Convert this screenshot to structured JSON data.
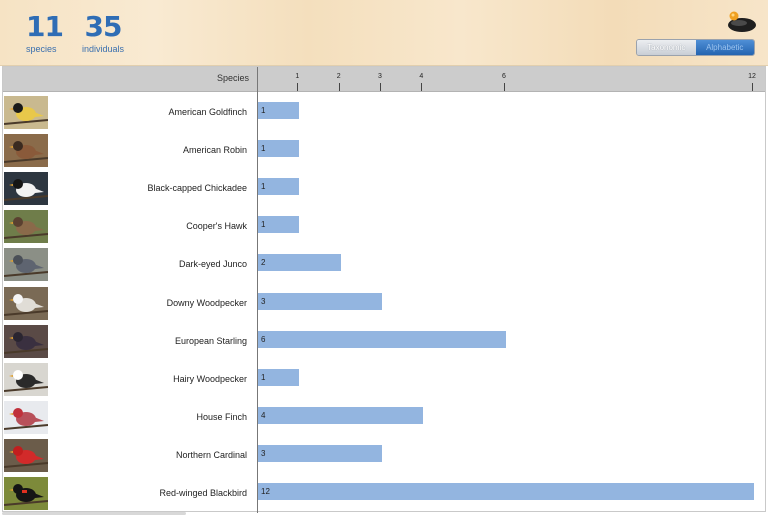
{
  "summary": {
    "species_count": "11",
    "species_label": "species",
    "individuals_count": "35",
    "individuals_label": "individuals"
  },
  "sort_toggle": {
    "options": [
      {
        "label": "Taxonomic",
        "active": false
      },
      {
        "label": "Alphabetic",
        "active": true
      }
    ]
  },
  "table": {
    "species_header": "Species",
    "axis_ticks": [
      "1",
      "2",
      "3",
      "4",
      "6",
      "12"
    ]
  },
  "colors": {
    "bar": "#93b5e0",
    "accent": "#2f6db5",
    "header_bg": "#f6e3c4"
  },
  "chart_data": {
    "type": "bar",
    "orientation": "horizontal",
    "categories": [
      "American Goldfinch",
      "American Robin",
      "Black-capped Chickadee",
      "Cooper's Hawk",
      "Dark-eyed Junco",
      "Downy Woodpecker",
      "European Starling",
      "Hairy Woodpecker",
      "House Finch",
      "Northern Cardinal",
      "Red-winged Blackbird"
    ],
    "values": [
      1,
      1,
      1,
      1,
      2,
      3,
      6,
      1,
      4,
      3,
      12
    ],
    "value_labels": [
      "1",
      "1",
      "1",
      "1",
      "2",
      "3",
      "6",
      "1",
      "4",
      "3",
      "12"
    ],
    "x_ticks": [
      1,
      2,
      3,
      4,
      6,
      12
    ],
    "xlim": [
      0,
      12
    ],
    "grid": false
  },
  "rows": [
    {
      "name": "American Goldfinch",
      "icon": "american-goldfinch-photo"
    },
    {
      "name": "American Robin",
      "icon": "american-robin-photo"
    },
    {
      "name": "Black-capped Chickadee",
      "icon": "black-capped-chickadee-photo"
    },
    {
      "name": "Cooper's Hawk",
      "icon": "coopers-hawk-photo"
    },
    {
      "name": "Dark-eyed Junco",
      "icon": "dark-eyed-junco-photo"
    },
    {
      "name": "Downy Woodpecker",
      "icon": "downy-woodpecker-photo"
    },
    {
      "name": "European Starling",
      "icon": "european-starling-photo"
    },
    {
      "name": "Hairy Woodpecker",
      "icon": "hairy-woodpecker-photo"
    },
    {
      "name": "House Finch",
      "icon": "house-finch-photo"
    },
    {
      "name": "Northern Cardinal",
      "icon": "northern-cardinal-photo"
    },
    {
      "name": "Red-winged Blackbird",
      "icon": "red-winged-blackbird-photo"
    }
  ]
}
